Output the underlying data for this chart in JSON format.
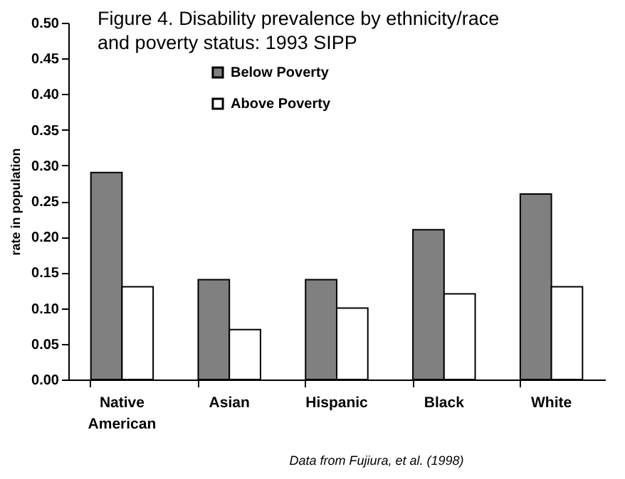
{
  "chart_data": {
    "type": "bar",
    "title": "Figure 4. Disability prevalence by ethnicity/race and poverty status:  1993 SIPP",
    "ylabel": "rate in population",
    "categories": [
      "Native American",
      "Asian",
      "Hispanic",
      "Black",
      "White"
    ],
    "series": [
      {
        "name": "Below Poverty",
        "color": "#808080",
        "values": [
          0.29,
          0.14,
          0.14,
          0.21,
          0.26
        ]
      },
      {
        "name": "Above Poverty",
        "color": "#ffffff",
        "values": [
          0.13,
          0.07,
          0.1,
          0.12,
          0.13
        ]
      }
    ],
    "ylim": [
      0,
      0.5
    ],
    "yticks": [
      {
        "value": 0,
        "label": "0.00"
      },
      0.05,
      {
        "value": 0.1,
        "label": "0.10"
      },
      0.15,
      {
        "value": 0.2,
        "label": "0.20"
      },
      0.25,
      {
        "value": 0.3,
        "label": "0.30"
      },
      0.35,
      {
        "value": 0.4,
        "label": "0.40"
      },
      0.45,
      {
        "value": 0.5,
        "label": "0.50"
      }
    ],
    "legend": "top",
    "grid": false,
    "annotations": [
      "Data from Fujiura, et al. (1998)"
    ]
  }
}
